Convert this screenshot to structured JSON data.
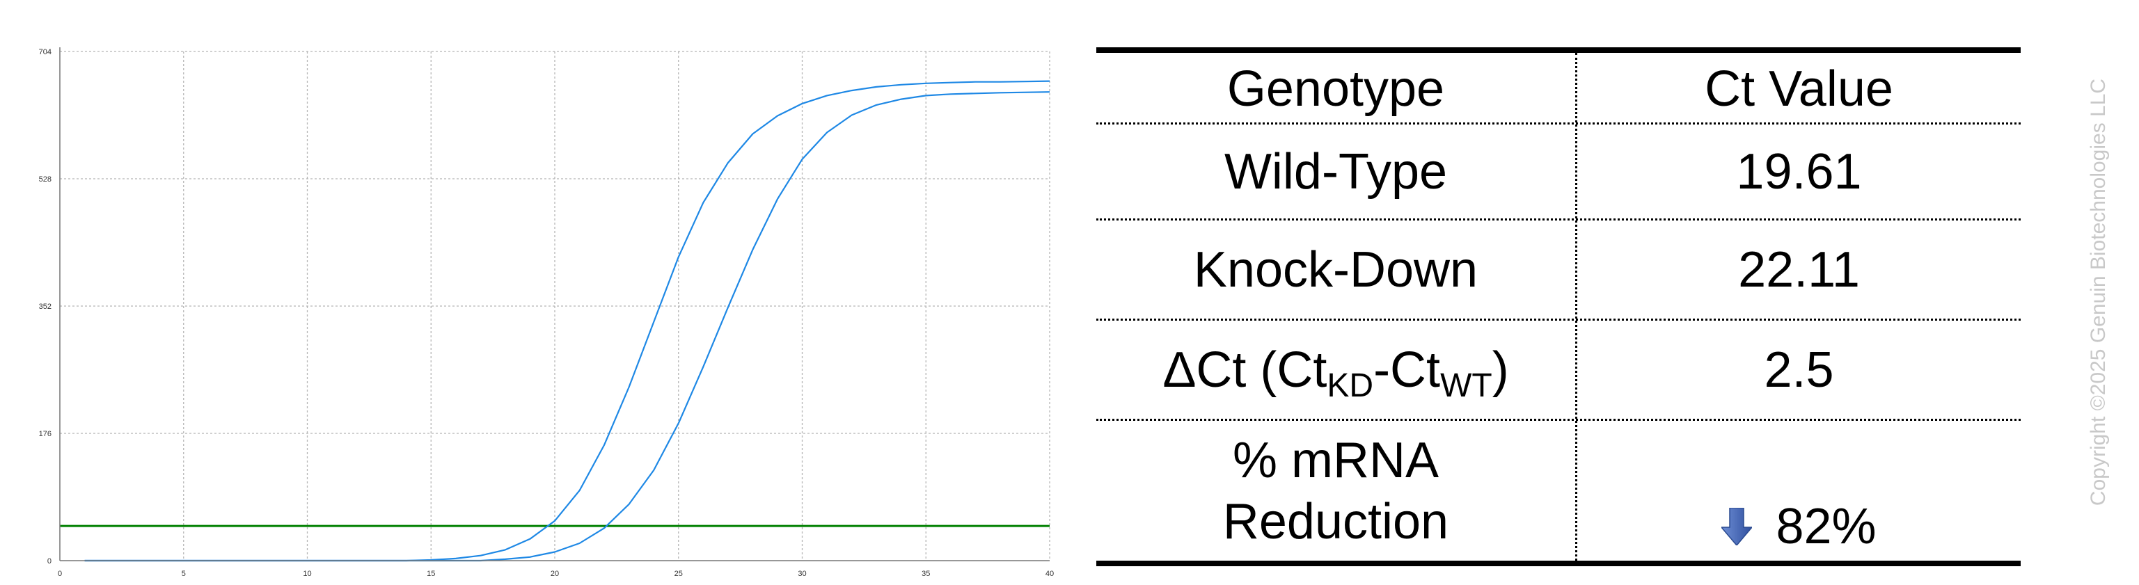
{
  "chart_data": {
    "type": "line",
    "title": "",
    "xlabel": "",
    "ylabel": "",
    "xlim": [
      0,
      40
    ],
    "ylim": [
      0,
      704
    ],
    "x_ticks": [
      "0",
      "5",
      "10",
      "15",
      "20",
      "25",
      "30",
      "35",
      "40"
    ],
    "y_ticks": [
      "0",
      "176",
      "352",
      "528",
      "704"
    ],
    "grid": true,
    "threshold": 48,
    "series": [
      {
        "color": "#1e88e5",
        "x": [
          1,
          14,
          15,
          16,
          17,
          18,
          19,
          20,
          21,
          22,
          23,
          24,
          25,
          26,
          27,
          28,
          29,
          30,
          31,
          32,
          33,
          34,
          35,
          36,
          37,
          38,
          40
        ],
        "y": [
          0,
          0,
          1,
          3,
          7,
          15,
          30,
          55,
          97,
          160,
          240,
          330,
          420,
          495,
          550,
          590,
          615,
          632,
          643,
          650,
          655,
          658,
          660,
          661,
          662,
          662,
          663
        ]
      },
      {
        "color": "#1e88e5",
        "x": [
          1,
          17,
          18,
          19,
          20,
          21,
          22,
          23,
          24,
          25,
          26,
          27,
          28,
          29,
          30,
          31,
          32,
          33,
          34,
          35,
          36,
          37,
          38,
          40
        ],
        "y": [
          0,
          0,
          2,
          5,
          12,
          24,
          45,
          78,
          125,
          190,
          268,
          350,
          430,
          500,
          555,
          592,
          616,
          630,
          638,
          643,
          645,
          646,
          647,
          648
        ]
      }
    ],
    "threshold_color": "#008000"
  },
  "table": {
    "header": {
      "genotype": "Genotype",
      "ct": "Ct Value"
    },
    "rows": {
      "wildtype": {
        "label": "Wild-Type",
        "value": "19.61"
      },
      "knockdown": {
        "label": "Knock-Down",
        "value": "22.11"
      },
      "delta": {
        "label_prefix": "ΔCt (Ct",
        "sub1": "KD",
        "dash": "-Ct",
        "sub2": "WT",
        "close": ")",
        "value": "2.5"
      },
      "reduction": {
        "label_line1": "% mRNA",
        "label_line2": "Reduction",
        "arrow_icon": "down-arrow-icon",
        "arrow_color": "#3a5fb0",
        "value": "82%"
      }
    }
  },
  "copyright": "Copyright ©2025 Genuin Biotechnologies LLC"
}
